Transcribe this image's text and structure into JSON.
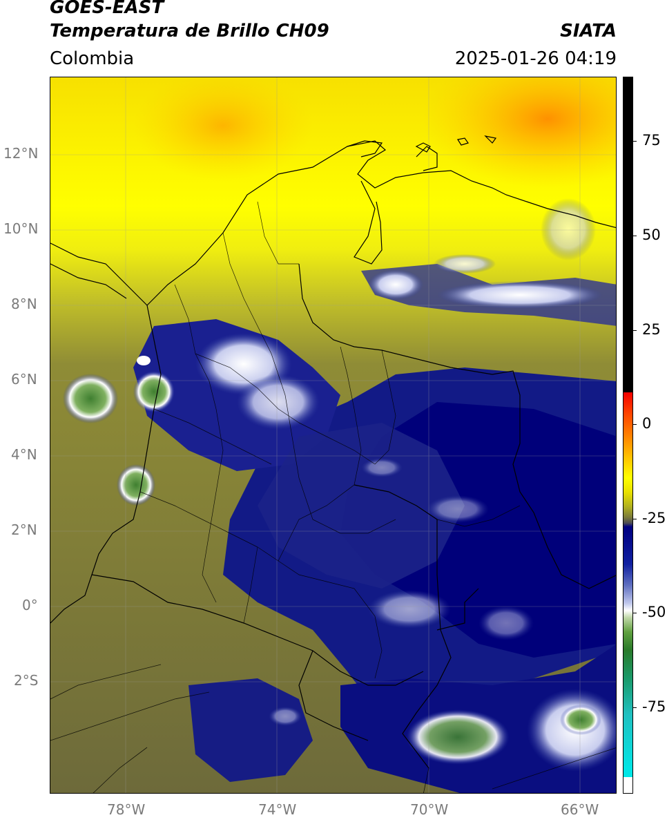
{
  "header": {
    "satellite": "GOES-EAST",
    "product": "Temperatura de Brillo CH09",
    "brand": "SIATA",
    "region": "Colombia",
    "timestamp": "2025-01-26 04:19"
  },
  "axes": {
    "lat_ticks": [
      "12°N",
      "10°N",
      "8°N",
      "6°N",
      "4°N",
      "2°N",
      "0°",
      "2°S"
    ],
    "lon_ticks": [
      "78°W",
      "74°W",
      "70°W",
      "66°W"
    ]
  },
  "colorbar": {
    "labels": [
      "75",
      "50",
      "25",
      "0",
      "-25",
      "-50",
      "-75"
    ],
    "colors": {
      "black": "#000000",
      "red": "#f40000",
      "orange": "#ff8000",
      "yellow": "#ffff00",
      "olive": "#7a7a3a",
      "navy": "#000080",
      "white": "#ffffff",
      "green": "#2a7a2a",
      "cyan": "#00e6e6"
    }
  },
  "map_colors": {
    "yellow": "#ffff00",
    "orange": "#ffa500",
    "olive": "#8a8a34",
    "dark_olive": "#5f5f44",
    "navy": "#141a7e",
    "deep_navy": "#00006e",
    "cloud_white": "#e8ebf7",
    "cloud_green": "#4f8f3a"
  }
}
